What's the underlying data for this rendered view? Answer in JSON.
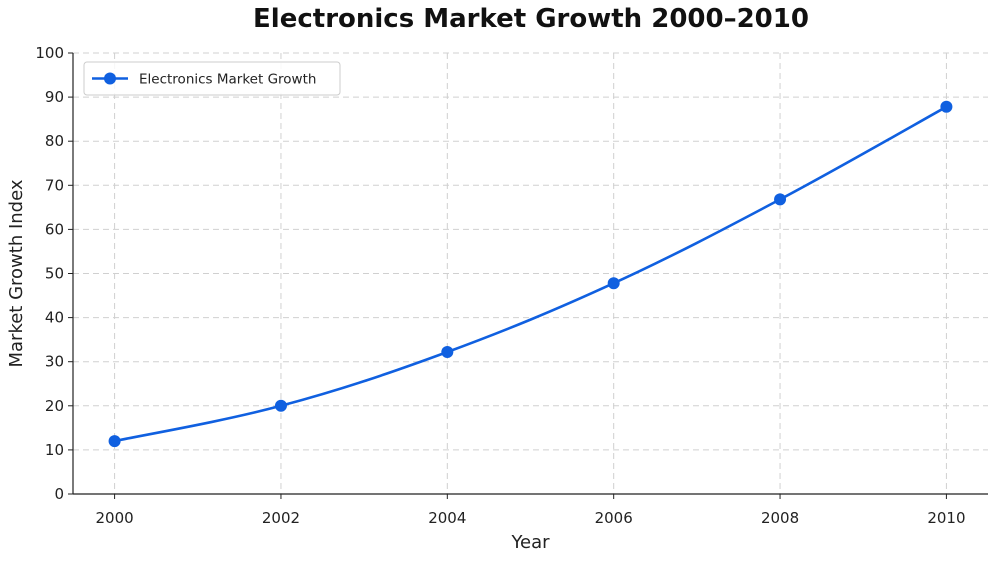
{
  "chart_data": {
    "type": "line",
    "title": "Electronics Market Growth 2000–2010",
    "xlabel": "Year",
    "ylabel": "Market Growth Index",
    "x": [
      2000,
      2002,
      2004,
      2006,
      2008,
      2010
    ],
    "series": [
      {
        "name": "Electronics Market Growth",
        "values": [
          12,
          20,
          32.2,
          47.8,
          66.8,
          87.8
        ],
        "color": "#1060e0"
      }
    ],
    "xticks": [
      "2000",
      "2002",
      "2004",
      "2006",
      "2008",
      "2010"
    ],
    "yticks": [
      "0",
      "10",
      "20",
      "30",
      "40",
      "50",
      "60",
      "70",
      "80",
      "90",
      "100"
    ],
    "xlim": [
      1999.5,
      2010.5
    ],
    "ylim": [
      0,
      100
    ],
    "grid": true,
    "grid_style": "dashed",
    "legend_position": "top-left",
    "marker": "circle"
  }
}
